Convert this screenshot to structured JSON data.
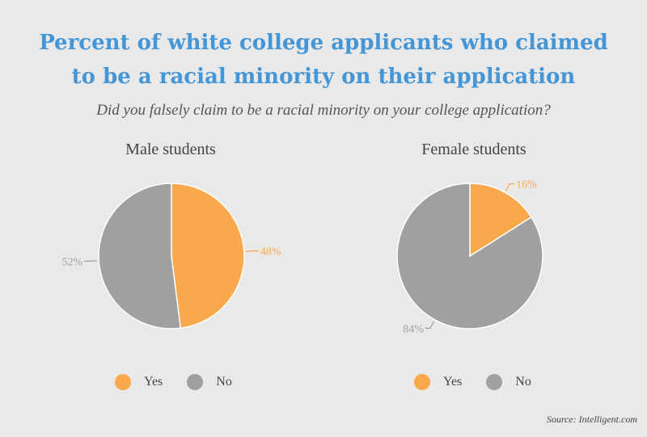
{
  "title": "Percent of white college applicants who claimed to be a racial minority on their application",
  "subtitle": "Did you falsely claim to be a racial minority on your college application?",
  "source": "Source: Intelligent.com",
  "colors": {
    "yes": "#f9a94b",
    "no": "#a0a0a0"
  },
  "chart_data": [
    {
      "type": "pie",
      "title": "Male students",
      "categories": [
        "Yes",
        "No"
      ],
      "values": [
        48,
        52
      ],
      "labels": [
        "48%",
        "52%"
      ],
      "legend": "bottom"
    },
    {
      "type": "pie",
      "title": "Female students",
      "categories": [
        "Yes",
        "No"
      ],
      "values": [
        16,
        84
      ],
      "labels": [
        "16%",
        "84%"
      ],
      "legend": "bottom"
    }
  ]
}
